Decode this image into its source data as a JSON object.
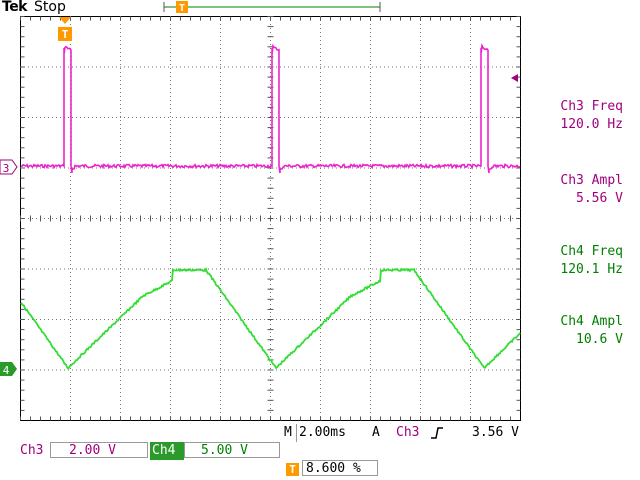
{
  "header": {
    "brand": "Tek",
    "state": "Stop"
  },
  "channels": {
    "ch3": {
      "marker": "3",
      "color": "#ee22cc"
    },
    "ch4": {
      "marker": "4",
      "color": "#33dd33"
    }
  },
  "trigger_icon": "T",
  "measurements": [
    {
      "label": "Ch3 Freq",
      "value": "120.0 Hz",
      "color": "#a0007e"
    },
    {
      "label": "Ch3 Ampl",
      "value": "5.56 V",
      "color": "#a0007e"
    },
    {
      "label": "Ch4 Freq",
      "value": "120.1 Hz",
      "color": "#008000"
    },
    {
      "label": "Ch4 Ampl",
      "value": "10.6 V",
      "color": "#008000"
    }
  ],
  "timebase": {
    "prefix": "M",
    "value": "2.00ms"
  },
  "trigger": {
    "mode": "A",
    "source": "Ch3",
    "slope_icon": "rising-edge-icon",
    "level": "3.56 V"
  },
  "scales": {
    "ch3": {
      "label": "Ch3",
      "value": "2.00 V"
    },
    "ch4": {
      "label": "Ch4",
      "value": "5.00 V"
    }
  },
  "trigger_position": {
    "icon": "T",
    "value": "8.600 %"
  }
}
